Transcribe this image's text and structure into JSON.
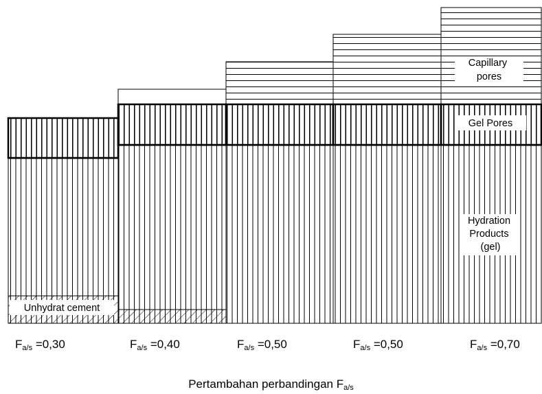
{
  "layers": {
    "capillary_pores": "Capillary\npores",
    "gel_pores": "Gel Pores",
    "hydration_products": "Hydration\nProducts\n(gel)",
    "unhydrat_cement": "Unhydrat cement"
  },
  "columns": [
    {
      "f_symbol": "F",
      "f_sub": "a/s",
      "value_label": "=0,30"
    },
    {
      "f_symbol": "F",
      "f_sub": "a/s",
      "value_label": "=0,40"
    },
    {
      "f_symbol": "F",
      "f_sub": "a/s",
      "value_label": "=0,50"
    },
    {
      "f_symbol": "F",
      "f_sub": "a/s",
      "value_label": "=0,50"
    },
    {
      "f_symbol": "F",
      "f_sub": "a/s",
      "value_label": "=0,70"
    }
  ],
  "axis_title": {
    "text": "Pertambahan perbandingan F",
    "sub": "a/s"
  }
}
